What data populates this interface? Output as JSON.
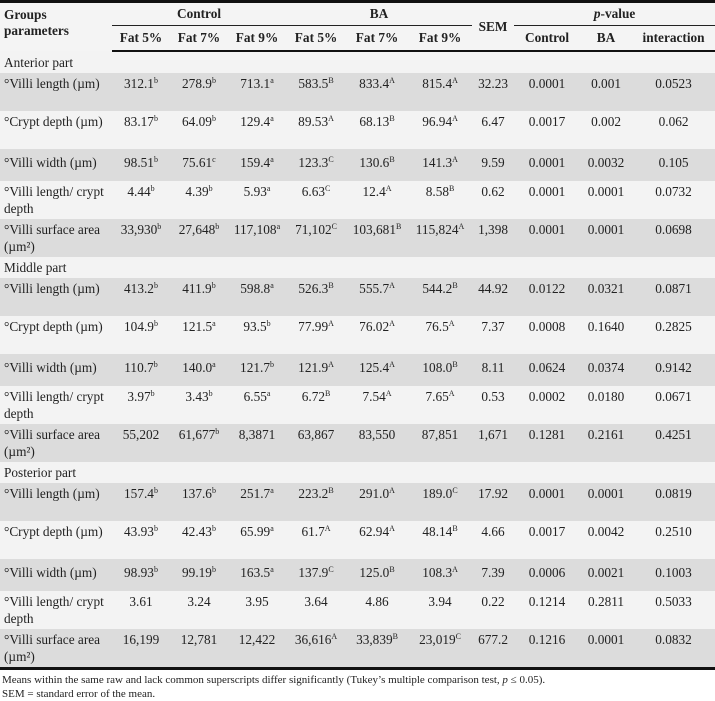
{
  "header": {
    "groups_label": "Groups parameters",
    "control": "Control",
    "ba": "BA",
    "sem": "SEM",
    "pvalue_p": "p",
    "pvalue_rest": "-value",
    "subcols": [
      "Fat 5%",
      "Fat 7%",
      "Fat 9%",
      "Fat 5%",
      "Fat 7%",
      "Fat 9%"
    ],
    "pcols": [
      "Control",
      "BA",
      "interaction"
    ]
  },
  "sections": [
    {
      "title": "Anterior part",
      "rows": [
        {
          "label": "°Villi length (µm)",
          "cells": [
            [
              "312.1",
              "b"
            ],
            [
              "278.9",
              "b"
            ],
            [
              "713.1",
              "a"
            ],
            [
              "583.5",
              "B"
            ],
            [
              "833.4",
              "A"
            ],
            [
              "815.4",
              "A"
            ],
            [
              "32.23",
              ""
            ],
            [
              "0.0001",
              ""
            ],
            [
              "0.001",
              ""
            ],
            [
              "0.0523",
              ""
            ]
          ]
        },
        {
          "label": "°Crypt depth (µm)",
          "cells": [
            [
              "83.17",
              "b"
            ],
            [
              "64.09",
              "b"
            ],
            [
              "129.4",
              "a"
            ],
            [
              "89.53",
              "A"
            ],
            [
              "68.13",
              "B"
            ],
            [
              "96.94",
              "A"
            ],
            [
              "6.47",
              ""
            ],
            [
              "0.0017",
              ""
            ],
            [
              "0.002",
              ""
            ],
            [
              "0.062",
              ""
            ]
          ]
        },
        {
          "label": "°Villi width (µm)",
          "cells": [
            [
              "98.51",
              "b"
            ],
            [
              "75.61",
              "c"
            ],
            [
              "159.4",
              "a"
            ],
            [
              "123.3",
              "C"
            ],
            [
              "130.6",
              "B"
            ],
            [
              "141.3",
              "A"
            ],
            [
              "9.59",
              ""
            ],
            [
              "0.0001",
              ""
            ],
            [
              "0.0032",
              ""
            ],
            [
              "0.105",
              ""
            ]
          ]
        },
        {
          "label": "°Villi length/ crypt depth",
          "cells": [
            [
              "4.44",
              "b"
            ],
            [
              "4.39",
              "b"
            ],
            [
              "5.93",
              "a"
            ],
            [
              "6.63",
              "C"
            ],
            [
              "12.4",
              "A"
            ],
            [
              "8.58",
              "B"
            ],
            [
              "0.62",
              ""
            ],
            [
              "0.0001",
              ""
            ],
            [
              "0.0001",
              ""
            ],
            [
              "0.0732",
              ""
            ]
          ]
        },
        {
          "label": "°Villi surface area (µm²)",
          "cells": [
            [
              "33,930",
              "b"
            ],
            [
              "27,648",
              "b"
            ],
            [
              "117,108",
              "a"
            ],
            [
              "71,102",
              "C"
            ],
            [
              "103,681",
              "B"
            ],
            [
              "115,824",
              "A"
            ],
            [
              "1,398",
              ""
            ],
            [
              "0.0001",
              ""
            ],
            [
              "0.0001",
              ""
            ],
            [
              "0.0698",
              ""
            ]
          ]
        }
      ]
    },
    {
      "title": "Middle part",
      "rows": [
        {
          "label": "°Villi length (µm)",
          "cells": [
            [
              "413.2",
              "b"
            ],
            [
              "411.9",
              "b"
            ],
            [
              "598.8",
              "a"
            ],
            [
              "526.3",
              "B"
            ],
            [
              "555.7",
              "A"
            ],
            [
              "544.2",
              "B"
            ],
            [
              "44.92",
              ""
            ],
            [
              "0.0122",
              ""
            ],
            [
              "0.0321",
              ""
            ],
            [
              "0.0871",
              ""
            ]
          ]
        },
        {
          "label": "°Crypt depth (µm)",
          "cells": [
            [
              "104.9",
              "b"
            ],
            [
              "121.5",
              "a"
            ],
            [
              "93.5",
              "b"
            ],
            [
              "77.99",
              "A"
            ],
            [
              "76.02",
              "A"
            ],
            [
              "76.5",
              "A"
            ],
            [
              "7.37",
              ""
            ],
            [
              "0.0008",
              ""
            ],
            [
              "0.1640",
              ""
            ],
            [
              "0.2825",
              ""
            ]
          ]
        },
        {
          "label": "°Villi width (µm)",
          "cells": [
            [
              "110.7",
              "b"
            ],
            [
              "140.0",
              "a"
            ],
            [
              "121.7",
              "b"
            ],
            [
              "121.9",
              "A"
            ],
            [
              "125.4",
              "A"
            ],
            [
              "108.0",
              "B"
            ],
            [
              "8.11",
              ""
            ],
            [
              "0.0624",
              ""
            ],
            [
              "0.0374",
              ""
            ],
            [
              "0.9142",
              ""
            ]
          ]
        },
        {
          "label": "°Villi length/ crypt depth",
          "cells": [
            [
              "3.97",
              "b"
            ],
            [
              "3.43",
              "b"
            ],
            [
              "6.55",
              "a"
            ],
            [
              "6.72",
              "B"
            ],
            [
              "7.54",
              "A"
            ],
            [
              "7.65",
              "A"
            ],
            [
              "0.53",
              ""
            ],
            [
              "0.0002",
              ""
            ],
            [
              "0.0180",
              ""
            ],
            [
              "0.0671",
              ""
            ]
          ]
        },
        {
          "label": "°Villi surface area (µm²)",
          "cells": [
            [
              "55,202",
              ""
            ],
            [
              "61,677",
              "b"
            ],
            [
              "8,3871",
              ""
            ],
            [
              "63,867",
              ""
            ],
            [
              "83,550",
              ""
            ],
            [
              "87,851",
              ""
            ],
            [
              "1,671",
              ""
            ],
            [
              "0.1281",
              ""
            ],
            [
              "0.2161",
              ""
            ],
            [
              "0.4251",
              ""
            ]
          ]
        }
      ]
    },
    {
      "title": "Posterior part",
      "rows": [
        {
          "label": "°Villi length (µm)",
          "cells": [
            [
              "157.4",
              "b"
            ],
            [
              "137.6",
              "b"
            ],
            [
              "251.7",
              "a"
            ],
            [
              "223.2",
              "B"
            ],
            [
              "291.0",
              "A"
            ],
            [
              "189.0",
              "C"
            ],
            [
              "17.92",
              ""
            ],
            [
              "0.0001",
              ""
            ],
            [
              "0.0001",
              ""
            ],
            [
              "0.0819",
              ""
            ]
          ]
        },
        {
          "label": "°Crypt depth (µm)",
          "cells": [
            [
              "43.93",
              "b"
            ],
            [
              "42.43",
              "b"
            ],
            [
              "65.99",
              "a"
            ],
            [
              "61.7",
              "A"
            ],
            [
              "62.94",
              "A"
            ],
            [
              "48.14",
              "B"
            ],
            [
              "4.66",
              ""
            ],
            [
              "0.0017",
              ""
            ],
            [
              "0.0042",
              ""
            ],
            [
              "0.2510",
              ""
            ]
          ]
        },
        {
          "label": "°Villi width (µm)",
          "cells": [
            [
              "98.93",
              "b"
            ],
            [
              "99.19",
              "b"
            ],
            [
              "163.5",
              "a"
            ],
            [
              "137.9",
              "C"
            ],
            [
              "125.0",
              "B"
            ],
            [
              "108.3",
              "A"
            ],
            [
              "7.39",
              ""
            ],
            [
              "0.0006",
              ""
            ],
            [
              "0.0021",
              ""
            ],
            [
              "0.1003",
              ""
            ]
          ]
        },
        {
          "label": "°Villi length/ crypt depth",
          "cells": [
            [
              "3.61",
              ""
            ],
            [
              "3.24",
              ""
            ],
            [
              "3.95",
              ""
            ],
            [
              "3.64",
              ""
            ],
            [
              "4.86",
              ""
            ],
            [
              "3.94",
              ""
            ],
            [
              "0.22",
              ""
            ],
            [
              "0.1214",
              ""
            ],
            [
              "0.2811",
              ""
            ],
            [
              "0.5033",
              ""
            ]
          ]
        },
        {
          "label": "°Villi surface area (µm²)",
          "cells": [
            [
              "16,199",
              ""
            ],
            [
              "12,781",
              ""
            ],
            [
              "12,422",
              ""
            ],
            [
              "36,616",
              "A"
            ],
            [
              "33,839",
              "B"
            ],
            [
              "23,019",
              "C"
            ],
            [
              "677.2",
              ""
            ],
            [
              "0.1216",
              ""
            ],
            [
              "0.0001",
              ""
            ],
            [
              "0.0832",
              ""
            ]
          ]
        }
      ]
    }
  ],
  "footnotes": {
    "line1_a": "Means within the same raw and lack common superscripts differ significantly (Tukey’s multiple comparison test, ",
    "line1_p": "p",
    "line1_b": " ≤ 0.05).",
    "line2": "SEM = standard error of the mean."
  }
}
